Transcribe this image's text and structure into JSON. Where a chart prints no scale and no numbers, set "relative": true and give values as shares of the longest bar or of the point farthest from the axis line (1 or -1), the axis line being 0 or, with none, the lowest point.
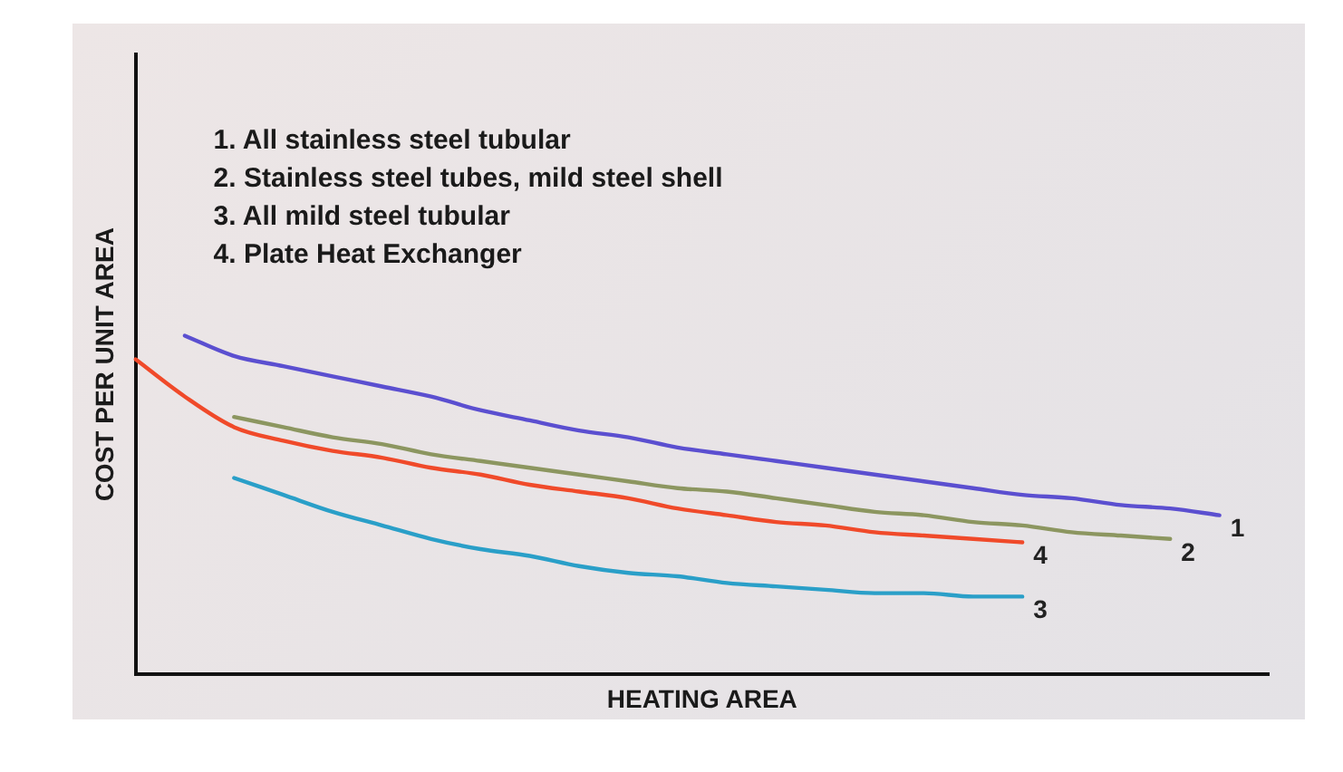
{
  "chart_data": {
    "type": "line",
    "relative": true,
    "xlabel": "HEATING AREA",
    "ylabel": "COST PER UNIT AREA",
    "legend": false,
    "grid": false,
    "marker": "none",
    "annotations": [
      "1. All stainless steel tubular",
      "2. Stainless steel tubes, mild steel shell",
      "3. All mild steel tubular",
      "4. Plate Heat Exchanger"
    ],
    "categories": [
      null,
      null,
      null,
      null,
      null,
      null,
      null,
      null,
      null,
      null,
      null,
      null,
      null,
      null,
      null,
      null,
      null,
      null,
      null,
      null,
      null,
      null,
      null,
      null
    ],
    "series": [
      {
        "name": "1",
        "color": "#5b4fd0",
        "values": [
          null,
          1.0,
          0.94,
          0.91,
          0.88,
          0.85,
          0.82,
          0.78,
          0.75,
          0.72,
          0.7,
          0.67,
          0.65,
          0.63,
          0.61,
          0.59,
          0.57,
          0.55,
          0.53,
          0.52,
          0.5,
          0.49,
          0.47,
          null
        ]
      },
      {
        "name": "2",
        "color": "#8c9660",
        "values": [
          null,
          null,
          0.76,
          0.73,
          0.7,
          0.68,
          0.65,
          0.63,
          0.61,
          0.59,
          0.57,
          0.55,
          0.54,
          0.52,
          0.5,
          0.48,
          0.47,
          0.45,
          0.44,
          0.42,
          0.41,
          0.4,
          null,
          null
        ]
      },
      {
        "name": "3",
        "color": "#2a9fc8",
        "values": [
          null,
          null,
          0.58,
          0.53,
          0.48,
          0.44,
          0.4,
          0.37,
          0.35,
          0.32,
          0.3,
          0.29,
          0.27,
          0.26,
          0.25,
          0.24,
          0.24,
          0.23,
          0.23,
          null,
          null,
          null,
          null,
          null
        ]
      },
      {
        "name": "4",
        "color": "#f04a2a",
        "values": [
          0.93,
          0.82,
          0.73,
          0.69,
          0.66,
          0.64,
          0.61,
          0.59,
          0.56,
          0.54,
          0.52,
          0.49,
          0.47,
          0.45,
          0.44,
          0.42,
          0.41,
          0.4,
          0.39,
          null,
          null,
          null,
          null,
          null
        ]
      }
    ]
  }
}
